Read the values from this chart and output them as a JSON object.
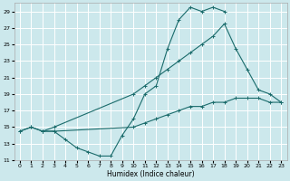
{
  "xlabel": "Humidex (Indice chaleur)",
  "bg_color": "#cce8ec",
  "line_color": "#1a6b6b",
  "grid_color": "#ffffff",
  "xlim": [
    -0.5,
    23.5
  ],
  "ylim": [
    11,
    30
  ],
  "xticks": [
    0,
    1,
    2,
    3,
    4,
    5,
    6,
    7,
    8,
    9,
    10,
    11,
    12,
    13,
    14,
    15,
    16,
    17,
    18,
    19,
    20,
    21,
    22,
    23
  ],
  "yticks": [
    11,
    13,
    15,
    17,
    19,
    21,
    23,
    25,
    27,
    29
  ],
  "curves": [
    {
      "x": [
        0,
        1,
        2,
        3,
        4,
        5,
        6,
        7,
        8,
        9,
        10,
        11,
        12,
        13,
        14,
        15,
        16,
        17,
        18
      ],
      "y": [
        14.5,
        15,
        14.5,
        14.5,
        13.5,
        12.5,
        12,
        11.5,
        11.5,
        14,
        16,
        19,
        20,
        24.5,
        28,
        29.5,
        29,
        29.5,
        29
      ]
    },
    {
      "x": [
        0,
        1,
        2,
        3,
        10,
        11,
        12,
        13,
        14,
        15,
        16,
        17,
        18,
        19,
        20,
        21,
        22,
        23
      ],
      "y": [
        14.5,
        15,
        14.5,
        14.5,
        15,
        15.5,
        16,
        16.5,
        17,
        17.5,
        17.5,
        18,
        18,
        18.5,
        18.5,
        18.5,
        18,
        18
      ]
    },
    {
      "x": [
        2,
        3,
        10,
        11,
        12,
        13,
        14,
        15,
        16,
        17,
        18,
        19,
        20,
        21,
        22,
        23
      ],
      "y": [
        14.5,
        15,
        19,
        20,
        21,
        22,
        23,
        24,
        25,
        26,
        27.5,
        24.5,
        22,
        19.5,
        19,
        18
      ]
    }
  ]
}
